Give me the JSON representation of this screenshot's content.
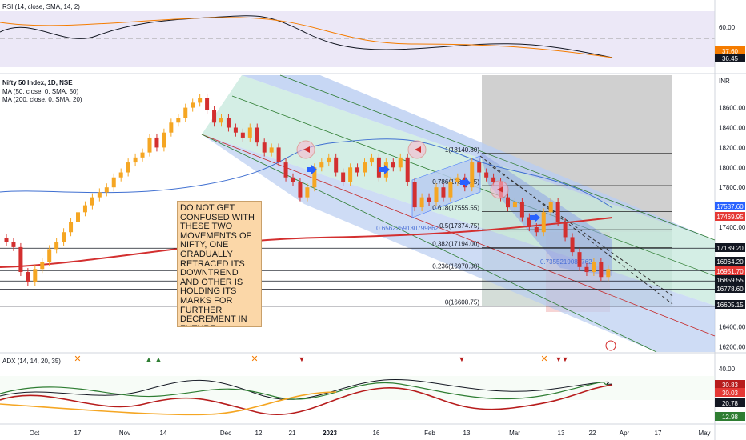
{
  "panes": {
    "rsi": {
      "title": "RSI (14, close, SMA, 14, 2)",
      "axis_ticks": [
        "60.00"
      ],
      "badges": [
        {
          "text": "37.60",
          "color": "#f57c00"
        },
        {
          "text": "36.45",
          "color": "#131722"
        }
      ]
    },
    "main": {
      "title": "Nifty 50 Index, 1D, NSE",
      "indicators": [
        "MA (50, close, 0, SMA, 50)",
        "MA (200, close, 0, SMA, 20)"
      ],
      "currency": "INR",
      "axis_ticks": [
        "18600.00",
        "18400.00",
        "18200.00",
        "18000.00",
        "17800.00",
        "17400.00",
        "17200.00",
        "16400.00",
        "16200.00"
      ],
      "price_badges": [
        {
          "text": "17587.60",
          "color": "#2962ff"
        },
        {
          "text": "17469.95",
          "color": "#e53935"
        },
        {
          "text": "17189.20",
          "color": "#131722"
        },
        {
          "text": "16964.20",
          "color": "#131722"
        },
        {
          "text": "16951.70",
          "color": "#e53935"
        },
        {
          "text": "16859.55",
          "color": "#131722"
        },
        {
          "text": "16778.60",
          "color": "#131722"
        },
        {
          "text": "16605.15",
          "color": "#131722"
        }
      ],
      "fib_levels": [
        {
          "label": "1(18140.80)",
          "price": 18140.8
        },
        {
          "label": "0.786(17818.25)",
          "price": 17818.25
        },
        {
          "label": "0.618(17555.55)",
          "price": 17555.55
        },
        {
          "label": "0.5(17374.75)",
          "price": 17374.75
        },
        {
          "label": "0.382(17194.00)",
          "price": 17194.0
        },
        {
          "label": "0.236(16970.30)",
          "price": 16970.3
        },
        {
          "label": "0(16608.75)",
          "price": 16608.75
        }
      ],
      "channel_labels": [
        "0.6562259130799862",
        "0.7355219080762"
      ],
      "note": "DO NOT GET CONFUSED WITH THESE TWO MOVEMENTS OF NIFTY, ONE GRADUALLY RETRACED ITS DOWNTREND AND OTHER IS HOLDING ITS MARKS FOR FURTHER DECREMENT IN FUTURE."
    },
    "adx": {
      "title": "ADX (14, 14, 20, 35)",
      "axis_ticks": [
        "40.00"
      ],
      "badges": [
        {
          "text": "30.83",
          "color": "#b71c1c"
        },
        {
          "text": "30.03",
          "color": "#e53935"
        },
        {
          "text": "20.78",
          "color": "#131722"
        },
        {
          "text": "12.98",
          "color": "#2e7d32"
        }
      ]
    }
  },
  "time_axis": [
    "Oct",
    "17",
    "Nov",
    "14",
    "Dec",
    "12",
    "21",
    "2023",
    "16",
    "Feb",
    "13",
    "Mar",
    "13",
    "22",
    "Apr",
    "17",
    "May"
  ],
  "colors": {
    "up": "#f5a623",
    "down": "#d32f2f",
    "ma50": "#3f6fd1",
    "ma200": "#d32f2f",
    "rsi": "#131722",
    "rsi_ma": "#f57c00"
  },
  "chart_data": {
    "type": "candlestick",
    "symbol": "Nifty 50 Index",
    "interval": "1D",
    "price_range": [
      16150,
      18850
    ],
    "candles_approx_close": [
      17250,
      17200,
      16950,
      16850,
      16980,
      17050,
      17180,
      17250,
      17350,
      17450,
      17550,
      17620,
      17700,
      17750,
      17800,
      17900,
      17950,
      18050,
      18100,
      18150,
      18300,
      18200,
      18350,
      18450,
      18500,
      18600,
      18650,
      18700,
      18580,
      18450,
      18500,
      18400,
      18350,
      18300,
      18400,
      18250,
      18150,
      18200,
      18050,
      17900,
      17850,
      17700,
      17800,
      18000,
      18050,
      18100,
      17950,
      17850,
      18000,
      17950,
      18050,
      18100,
      17900,
      18050,
      18000,
      18100,
      17850,
      17600,
      17700,
      17650,
      17800,
      17700,
      17850,
      17900,
      17800,
      18050,
      17950,
      17900,
      17850,
      17700,
      17600,
      17650,
      17500,
      17400,
      17350,
      17550,
      17650,
      17450,
      17300,
      17150,
      17000,
      16950,
      17050,
      16900,
      16980
    ]
  }
}
